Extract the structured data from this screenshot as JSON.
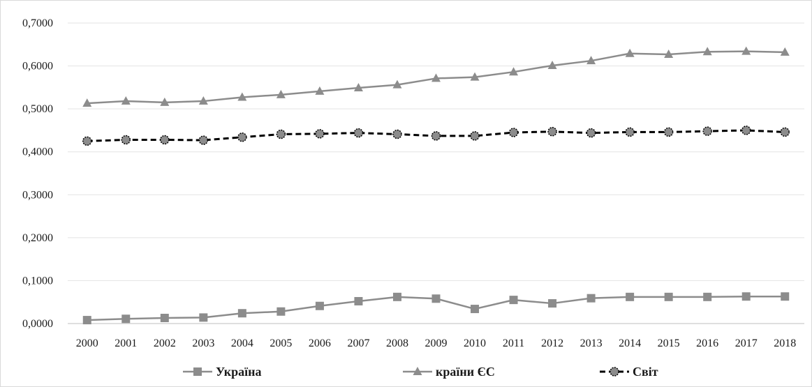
{
  "chart_data": {
    "type": "line",
    "title": "",
    "xlabel": "",
    "ylabel": "",
    "ylim": [
      0,
      0.7
    ],
    "yticks": [
      "0,0000",
      "0,1000",
      "0,2000",
      "0,3000",
      "0,4000",
      "0,5000",
      "0,6000",
      "0,7000"
    ],
    "grid": true,
    "legend_position": "bottom",
    "x": [
      "2000",
      "2001",
      "2002",
      "2003",
      "2004",
      "2005",
      "2006",
      "2007",
      "2008",
      "2009",
      "2010",
      "2011",
      "2012",
      "2013",
      "2014",
      "2015",
      "2016",
      "2017",
      "2018"
    ],
    "series": [
      {
        "name": "Україна",
        "color": "#8c8c8c",
        "marker": "square",
        "dashed": false,
        "values": [
          0.008,
          0.011,
          0.013,
          0.014,
          0.024,
          0.028,
          0.041,
          0.052,
          0.062,
          0.058,
          0.034,
          0.055,
          0.047,
          0.059,
          0.062,
          0.062,
          0.062,
          0.063,
          0.063
        ]
      },
      {
        "name": "країни ЄС",
        "color": "#8c8c8c",
        "marker": "triangle",
        "dashed": false,
        "values": [
          0.513,
          0.518,
          0.515,
          0.518,
          0.527,
          0.533,
          0.541,
          0.549,
          0.556,
          0.571,
          0.574,
          0.586,
          0.601,
          0.612,
          0.629,
          0.627,
          0.633,
          0.634,
          0.632
        ]
      },
      {
        "name": "Світ",
        "color": "#000000",
        "marker_fill": "#8c8c8c",
        "marker": "circle",
        "dashed": true,
        "values": [
          0.425,
          0.428,
          0.428,
          0.427,
          0.434,
          0.441,
          0.442,
          0.444,
          0.441,
          0.437,
          0.437,
          0.445,
          0.447,
          0.444,
          0.446,
          0.446,
          0.448,
          0.45,
          0.446
        ]
      }
    ]
  }
}
